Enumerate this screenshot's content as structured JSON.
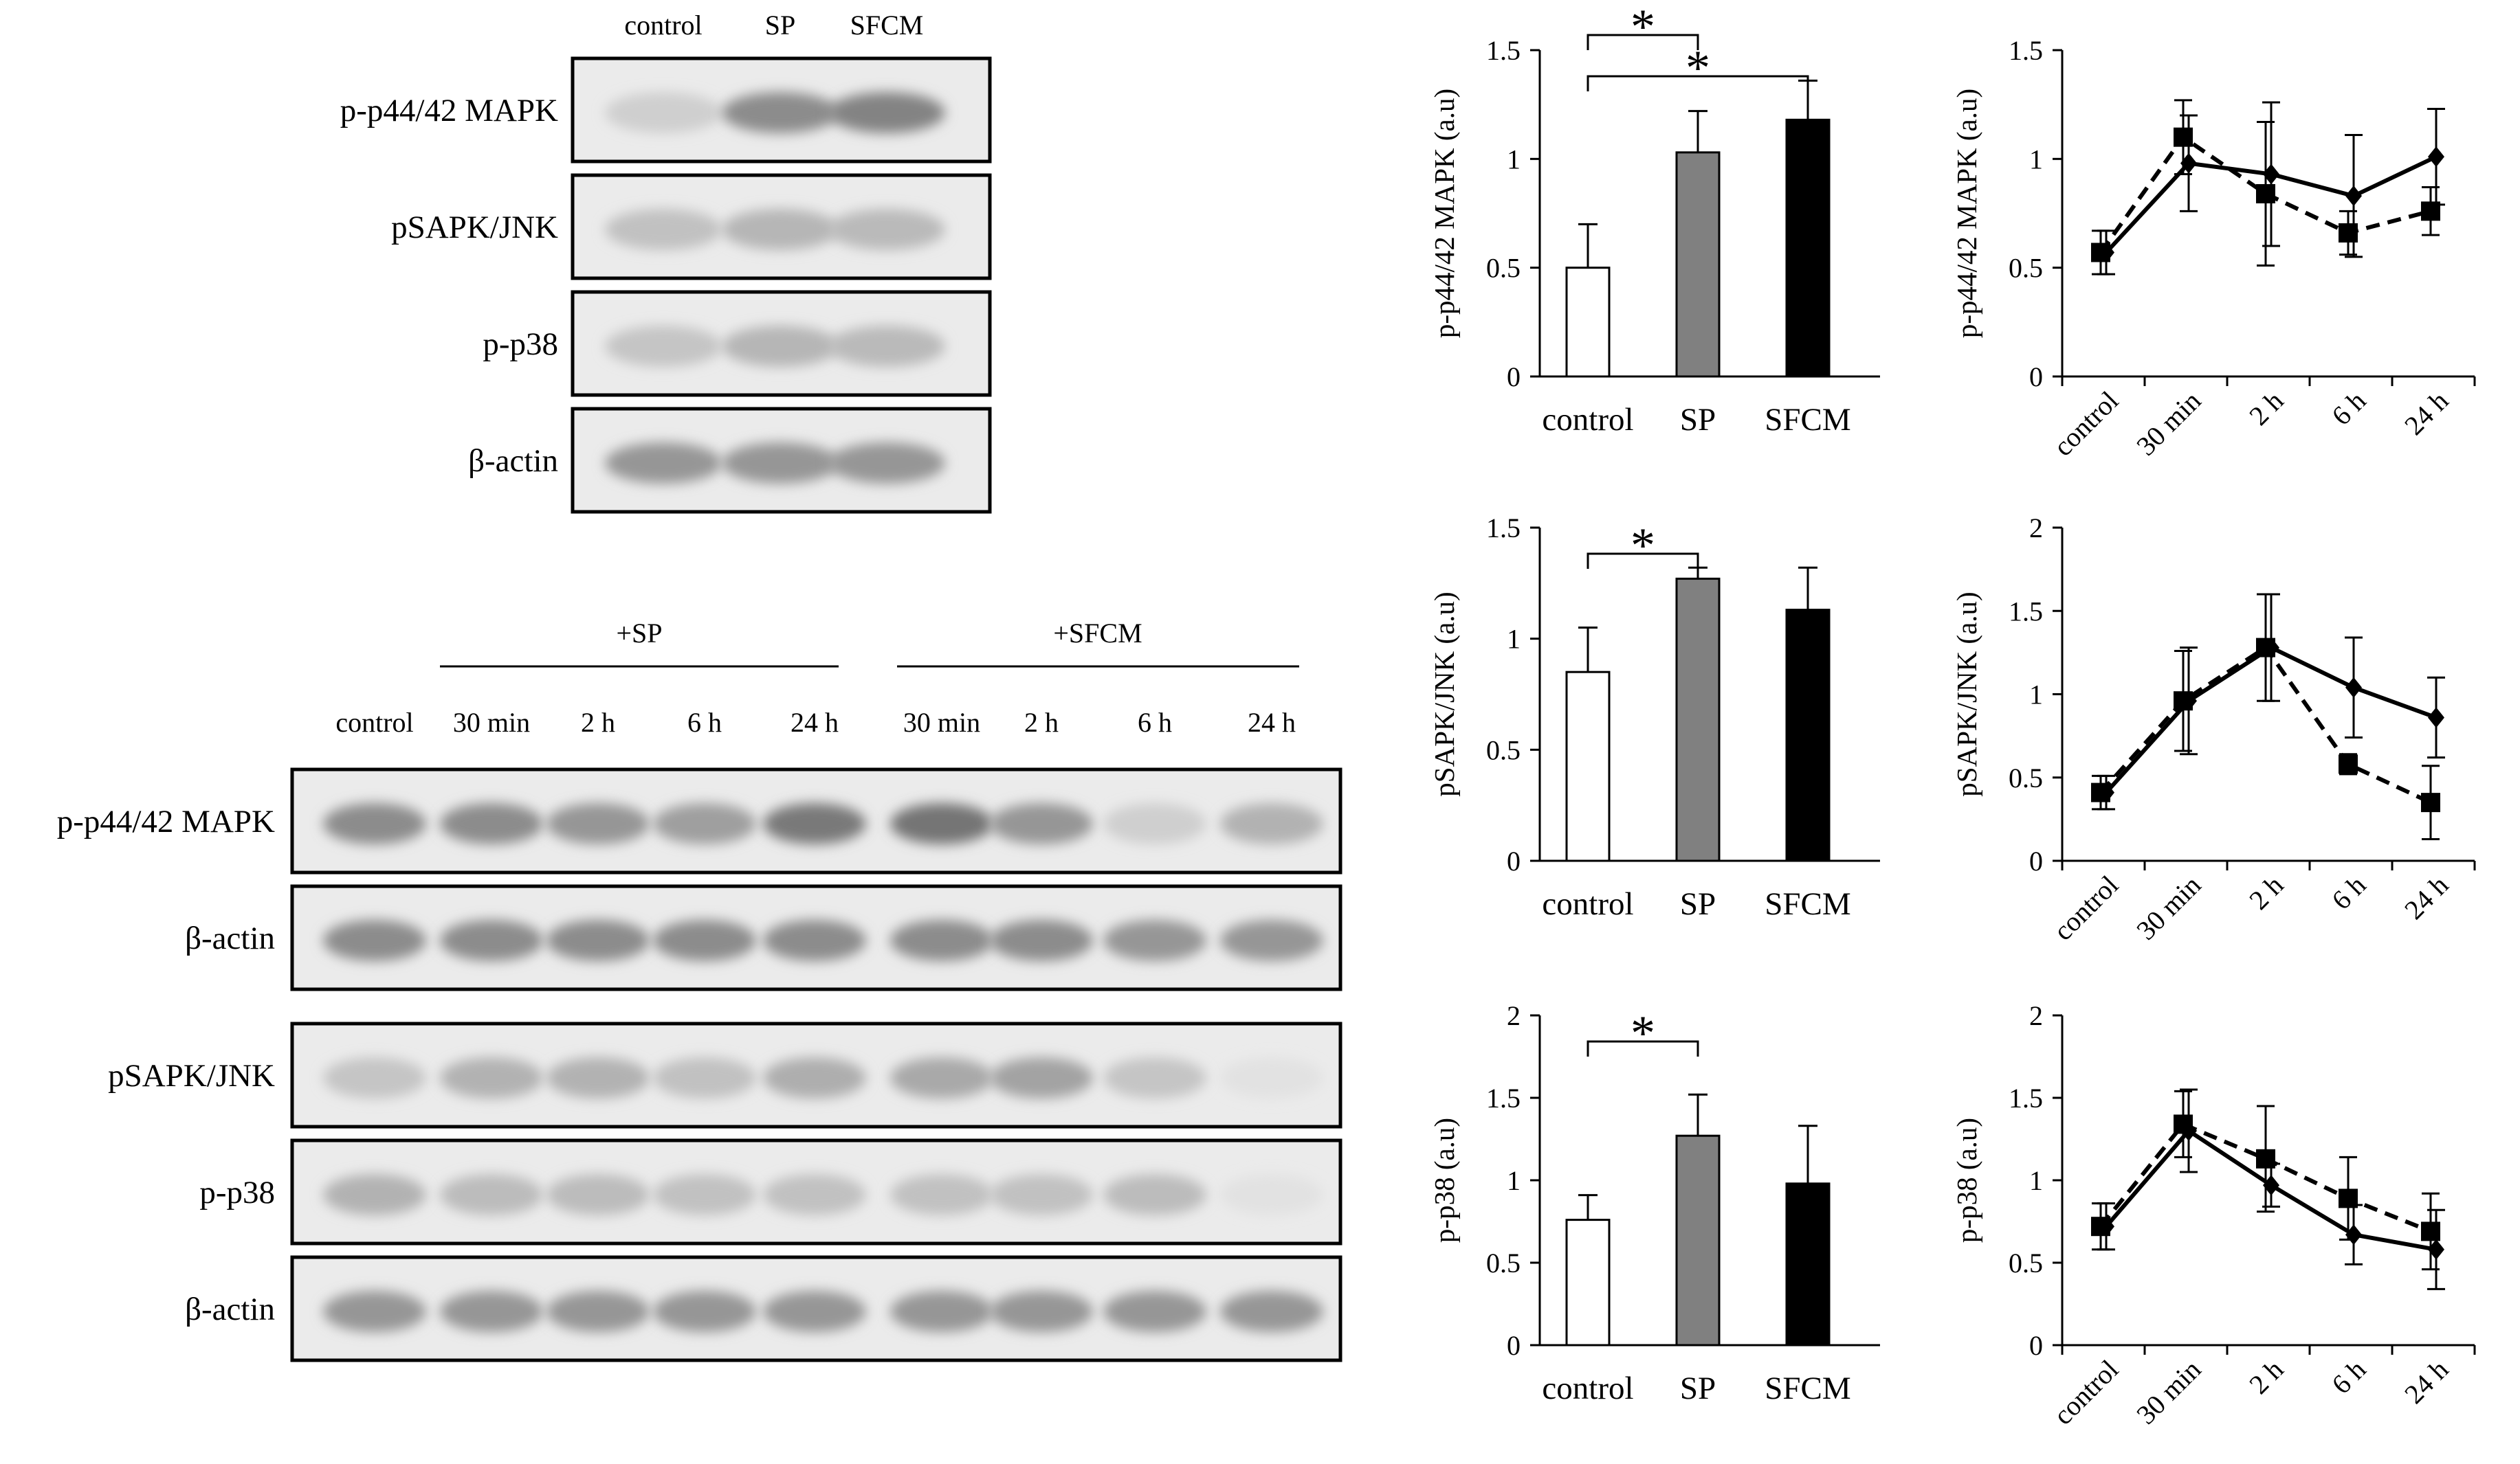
{
  "blot_top": {
    "lanes": [
      "control",
      "SP",
      "SFCM"
    ],
    "rows": [
      {
        "label": "p-p44/42 MAPK",
        "intensity": [
          0.15,
          0.5,
          0.55
        ]
      },
      {
        "label": "pSAPK/JNK",
        "intensity": [
          0.22,
          0.28,
          0.26
        ]
      },
      {
        "label": "p-p38",
        "intensity": [
          0.2,
          0.28,
          0.26
        ]
      },
      {
        "label": "β-actin",
        "intensity": [
          0.45,
          0.45,
          0.45
        ]
      }
    ]
  },
  "blot_bottom": {
    "group_sp": "+SP",
    "group_sfcm": "+SFCM",
    "lanes": [
      "control",
      "30 min",
      "2 h",
      "6 h",
      "24 h",
      "30 min",
      "2 h",
      "6 h",
      "24 h"
    ],
    "rows": [
      {
        "label": "p-p44/42 MAPK",
        "intensity": [
          0.5,
          0.5,
          0.45,
          0.4,
          0.6,
          0.62,
          0.45,
          0.15,
          0.3
        ]
      },
      {
        "label": "β-actin",
        "intensity": [
          0.5,
          0.5,
          0.5,
          0.5,
          0.5,
          0.5,
          0.5,
          0.45,
          0.45
        ]
      },
      {
        "label": "pSAPK/JNK",
        "intensity": [
          0.2,
          0.3,
          0.3,
          0.22,
          0.32,
          0.35,
          0.38,
          0.2,
          0.05
        ]
      },
      {
        "label": "p-p38",
        "intensity": [
          0.3,
          0.25,
          0.25,
          0.22,
          0.22,
          0.22,
          0.22,
          0.25,
          0.05
        ]
      },
      {
        "label": "β-actin",
        "intensity": [
          0.45,
          0.45,
          0.45,
          0.45,
          0.45,
          0.45,
          0.45,
          0.45,
          0.45
        ]
      }
    ]
  },
  "chart_data": [
    {
      "type": "bar",
      "categories": [
        "control",
        "SP",
        "SFCM"
      ],
      "values": [
        0.5,
        1.03,
        1.18
      ],
      "errors": [
        0.2,
        0.19,
        0.18
      ],
      "colors": [
        "#ffffff",
        "#808080",
        "#000000"
      ],
      "ylabel": "p-p44/42 MAPK (a.u)",
      "ylim": [
        0,
        1.5
      ],
      "yticks": [
        "0",
        "0.5",
        "1",
        "1.5"
      ],
      "significance": [
        {
          "from": 0,
          "to": 1,
          "label": "*"
        },
        {
          "from": 0,
          "to": 2,
          "label": "*"
        }
      ]
    },
    {
      "type": "bar",
      "categories": [
        "control",
        "SP",
        "SFCM"
      ],
      "values": [
        0.85,
        1.27,
        1.13
      ],
      "errors": [
        0.2,
        0.05,
        0.19
      ],
      "colors": [
        "#ffffff",
        "#808080",
        "#000000"
      ],
      "ylabel": "pSAPK/JNK (a.u)",
      "ylim": [
        0,
        1.5
      ],
      "yticks": [
        "0",
        "0.5",
        "1",
        "1.5"
      ],
      "significance": [
        {
          "from": 0,
          "to": 1,
          "label": "*"
        }
      ]
    },
    {
      "type": "bar",
      "categories": [
        "control",
        "SP",
        "SFCM"
      ],
      "values": [
        0.76,
        1.27,
        0.98
      ],
      "errors": [
        0.15,
        0.25,
        0.35
      ],
      "colors": [
        "#ffffff",
        "#808080",
        "#000000"
      ],
      "ylabel": "p-p38 (a.u)",
      "ylim": [
        0,
        2
      ],
      "yticks": [
        "0",
        "0.5",
        "1",
        "1.5",
        "2"
      ],
      "significance": [
        {
          "from": 0,
          "to": 1,
          "label": "*"
        }
      ]
    },
    {
      "type": "line",
      "categories": [
        "control",
        "30 min",
        "2 h",
        "6 h",
        "24 h"
      ],
      "ylabel": "p-p44/42 MAPK (a.u)",
      "ylim": [
        0,
        1.5
      ],
      "yticks": [
        "0",
        "0.5",
        "1",
        "1.5"
      ],
      "series": [
        {
          "marker": "diamond",
          "dash": "solid",
          "values": [
            0.57,
            0.98,
            0.93,
            0.83,
            1.01
          ],
          "errors": [
            0.1,
            0.22,
            0.33,
            0.28,
            0.22
          ]
        },
        {
          "marker": "square",
          "dash": "dashed",
          "values": [
            0.57,
            1.1,
            0.84,
            0.66,
            0.76
          ],
          "errors": [
            0.1,
            0.17,
            0.33,
            0.1,
            0.11
          ]
        }
      ]
    },
    {
      "type": "line",
      "categories": [
        "control",
        "30 min",
        "2 h",
        "6 h",
        "24 h"
      ],
      "ylabel": "pSAPK/JNK (a.u)",
      "ylim": [
        0,
        2
      ],
      "yticks": [
        "0",
        "0.5",
        "1",
        "1.5",
        "2"
      ],
      "series": [
        {
          "marker": "diamond",
          "dash": "solid",
          "values": [
            0.41,
            0.96,
            1.28,
            1.04,
            0.86
          ],
          "errors": [
            0.1,
            0.32,
            0.32,
            0.3,
            0.24
          ]
        },
        {
          "marker": "square",
          "dash": "dashed",
          "values": [
            0.41,
            0.96,
            1.28,
            0.58,
            0.35
          ],
          "errors": [
            0.1,
            0.3,
            0.32,
            0.06,
            0.22
          ]
        }
      ]
    },
    {
      "type": "line",
      "categories": [
        "control",
        "30 min",
        "2 h",
        "6 h",
        "24 h"
      ],
      "ylabel": "p-p38 (a.u)",
      "ylim": [
        0,
        2
      ],
      "yticks": [
        "0",
        "0.5",
        "1",
        "1.5",
        "2"
      ],
      "series": [
        {
          "marker": "diamond",
          "dash": "solid",
          "values": [
            0.72,
            1.3,
            0.97,
            0.67,
            0.58
          ],
          "errors": [
            0.14,
            0.25,
            0.13,
            0.18,
            0.24
          ]
        },
        {
          "marker": "square",
          "dash": "dashed",
          "values": [
            0.72,
            1.34,
            1.13,
            0.89,
            0.69
          ],
          "errors": [
            0.14,
            0.2,
            0.32,
            0.25,
            0.23
          ]
        }
      ]
    }
  ]
}
